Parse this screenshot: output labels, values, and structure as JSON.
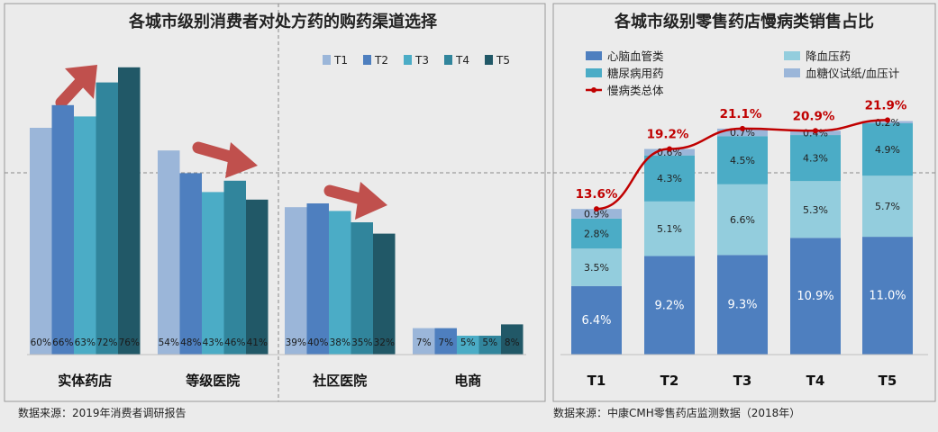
{
  "chart_data": [
    {
      "type": "bar",
      "title": "各城市级别消费者对处方药的购药渠道选择",
      "categories": [
        "实体药店",
        "等级医院",
        "社区医院",
        "电商"
      ],
      "series": [
        {
          "name": "T1",
          "values": [
            60,
            54,
            39,
            7
          ],
          "labels": [
            "60%",
            "54%",
            "39%",
            "7%"
          ],
          "color": "#9bb6d9"
        },
        {
          "name": "T2",
          "values": [
            66,
            48,
            40,
            7
          ],
          "labels": [
            "66%",
            "48%",
            "40%",
            "7%"
          ],
          "color": "#4e7fbf"
        },
        {
          "name": "T3",
          "values": [
            63,
            43,
            38,
            5
          ],
          "labels": [
            "63%",
            "43%",
            "38%",
            "5%"
          ],
          "color": "#4bacc6"
        },
        {
          "name": "T4",
          "values": [
            72,
            46,
            35,
            5
          ],
          "labels": [
            "72%",
            "46%",
            "35%",
            "5%"
          ],
          "color": "#31859c"
        },
        {
          "name": "T5",
          "values": [
            76,
            41,
            32,
            8
          ],
          "labels": [
            "76%",
            "41%",
            "32%",
            "8%"
          ],
          "color": "#215867"
        }
      ],
      "ylim": [
        0,
        100
      ],
      "legend": "top-right",
      "source": "数据来源：2019年消费者调研报告"
    },
    {
      "type": "bar",
      "stacked": true,
      "title": "各城市级别零售药店慢病类销售占比",
      "categories": [
        "T1",
        "T2",
        "T3",
        "T4",
        "T5"
      ],
      "series": [
        {
          "name": "心脑血管类",
          "values": [
            6.4,
            9.2,
            9.3,
            10.9,
            11.0
          ],
          "labels": [
            "6.4%",
            "9.2%",
            "9.3%",
            "10.9%",
            "11.0%"
          ],
          "color": "#4e7fbf"
        },
        {
          "name": "降血压药",
          "values": [
            3.5,
            5.1,
            6.6,
            5.3,
            5.7
          ],
          "labels": [
            "3.5%",
            "5.1%",
            "6.6%",
            "5.3%",
            "5.7%"
          ],
          "color": "#93cddd"
        },
        {
          "name": "糖尿病用药",
          "values": [
            2.8,
            4.3,
            4.5,
            4.3,
            4.9
          ],
          "labels": [
            "2.8%",
            "4.3%",
            "4.5%",
            "4.3%",
            "4.9%"
          ],
          "color": "#4bacc6"
        },
        {
          "name": "血糖仪试纸/血压计",
          "values": [
            0.9,
            0.6,
            0.7,
            0.4,
            0.2
          ],
          "labels": [
            "0.9%",
            "0.6%",
            "0.7%",
            "0.4%",
            "0.2%"
          ],
          "color": "#9bb6d9"
        }
      ],
      "line": {
        "name": "慢病类总体",
        "values": [
          13.6,
          19.2,
          21.1,
          20.9,
          21.9
        ],
        "labels": [
          "13.6%",
          "19.2%",
          "21.1%",
          "20.9%",
          "21.9%"
        ],
        "color": "#c00000"
      },
      "ylim": [
        0,
        23
      ],
      "legend": "top",
      "source": "数据来源：中康CMH零售药店监测数据（2018年）"
    }
  ]
}
